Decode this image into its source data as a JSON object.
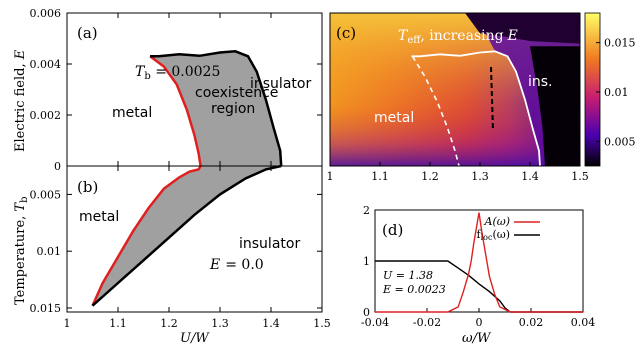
{
  "chart_data": [
    {
      "id": "a",
      "type": "area",
      "panel_label": "(a)",
      "ylabel": "Electric field, E",
      "xlim": [
        1.0,
        1.5
      ],
      "ylim": [
        0,
        0.006
      ],
      "yticks": [
        "0",
        "0.002",
        "0.004",
        "0.006"
      ],
      "annotation_tb": "T_b = 0.0025",
      "annotations": {
        "metal": "metal",
        "coexistence": [
          "coexistence",
          "region"
        ],
        "insulator": "insulator"
      },
      "red_boundary": [
        [
          1.163,
          0.0043
        ],
        [
          1.19,
          0.0039
        ],
        [
          1.215,
          0.0032
        ],
        [
          1.235,
          0.0022
        ],
        [
          1.25,
          0.0012
        ],
        [
          1.258,
          0.0005
        ],
        [
          1.262,
          0.0
        ]
      ],
      "black_boundary": [
        [
          1.163,
          0.0043
        ],
        [
          1.18,
          0.0043
        ],
        [
          1.22,
          0.00438
        ],
        [
          1.26,
          0.00432
        ],
        [
          1.3,
          0.00445
        ],
        [
          1.33,
          0.0045
        ],
        [
          1.355,
          0.0043
        ],
        [
          1.372,
          0.0037
        ],
        [
          1.39,
          0.0026
        ],
        [
          1.405,
          0.0015
        ],
        [
          1.418,
          0.0006
        ],
        [
          1.42,
          0.0
        ]
      ]
    },
    {
      "id": "b",
      "type": "area",
      "panel_label": "(b)",
      "ylabel": "Temperature, T_b",
      "xlabel": "U/W",
      "xlim": [
        1.0,
        1.5
      ],
      "ylim_top_to_bottom": [
        0.0025,
        0.015
      ],
      "xticks": [
        "1",
        "1.1",
        "1.2",
        "1.3",
        "1.4",
        "1.5"
      ],
      "yticks": [
        "0.005",
        "0.01",
        "0.015"
      ],
      "annotations": {
        "metal": "metal",
        "insulator": "insulator",
        "field": "E",
        "field_value": "= 0.0"
      },
      "red_boundary": [
        [
          1.05,
          0.0148
        ],
        [
          1.07,
          0.0128
        ],
        [
          1.1,
          0.0105
        ],
        [
          1.13,
          0.0082
        ],
        [
          1.16,
          0.0062
        ],
        [
          1.19,
          0.0045
        ],
        [
          1.22,
          0.0035
        ],
        [
          1.24,
          0.003
        ],
        [
          1.258,
          0.0028
        ],
        [
          1.262,
          0.0025
        ]
      ],
      "black_boundary": [
        [
          1.05,
          0.0148
        ],
        [
          1.1,
          0.0128
        ],
        [
          1.15,
          0.0108
        ],
        [
          1.2,
          0.0088
        ],
        [
          1.25,
          0.0068
        ],
        [
          1.3,
          0.005
        ],
        [
          1.35,
          0.0036
        ],
        [
          1.39,
          0.0028
        ],
        [
          1.42,
          0.0025
        ]
      ]
    },
    {
      "id": "c",
      "type": "heatmap",
      "panel_label": "(c)",
      "title_prefix": "T",
      "title_sub": "eff",
      "title_suffix": ", increasing",
      "title_var": "E",
      "xlim": [
        1.0,
        1.5
      ],
      "xticks": [
        "1",
        "1.1",
        "1.2",
        "1.3",
        "1.4",
        "1.5"
      ],
      "colorbar_ticks": [
        "0.005",
        "0.01",
        "0.015"
      ],
      "colorbar_range": [
        0.0025,
        0.018
      ],
      "annotations": {
        "metal": "metal",
        "insulator": "ins."
      },
      "colors": {
        "high": "#ffe630",
        "mid": "#e8452a",
        "low": "#6b0ea0",
        "lowest": "#000000"
      }
    },
    {
      "id": "d",
      "type": "line",
      "panel_label": "(d)",
      "xlabel": "ω/W",
      "xlim": [
        -0.04,
        0.04
      ],
      "ylim": [
        0,
        2
      ],
      "xticks": [
        "-0.04",
        "-0.02",
        "0",
        "0.02",
        "0.04"
      ],
      "yticks": [
        "0",
        "1",
        "2"
      ],
      "params": {
        "U": "U = 1.38",
        "E": "E = 0.0023"
      },
      "series": [
        {
          "name": "A(ω)",
          "color": "#e02020",
          "x": [
            -0.04,
            -0.012,
            -0.008,
            -0.006,
            -0.004,
            -0.003,
            -0.002,
            -0.001,
            0.0,
            0.001,
            0.002,
            0.003,
            0.004,
            0.006,
            0.008,
            0.012,
            0.04
          ],
          "y": [
            0,
            0,
            0.1,
            0.4,
            0.75,
            1.0,
            1.35,
            1.65,
            1.95,
            1.6,
            1.3,
            1.0,
            0.7,
            0.35,
            0.1,
            0,
            0
          ]
        },
        {
          "name": "f_loc(ω)",
          "color": "#000000",
          "x": [
            -0.04,
            -0.012,
            -0.008,
            -0.004,
            0.0,
            0.004,
            0.008,
            0.01,
            0.012,
            0.04
          ],
          "y": [
            1.0,
            1.0,
            0.86,
            0.72,
            0.55,
            0.4,
            0.22,
            0.08,
            0.0,
            0.0
          ]
        }
      ]
    }
  ]
}
